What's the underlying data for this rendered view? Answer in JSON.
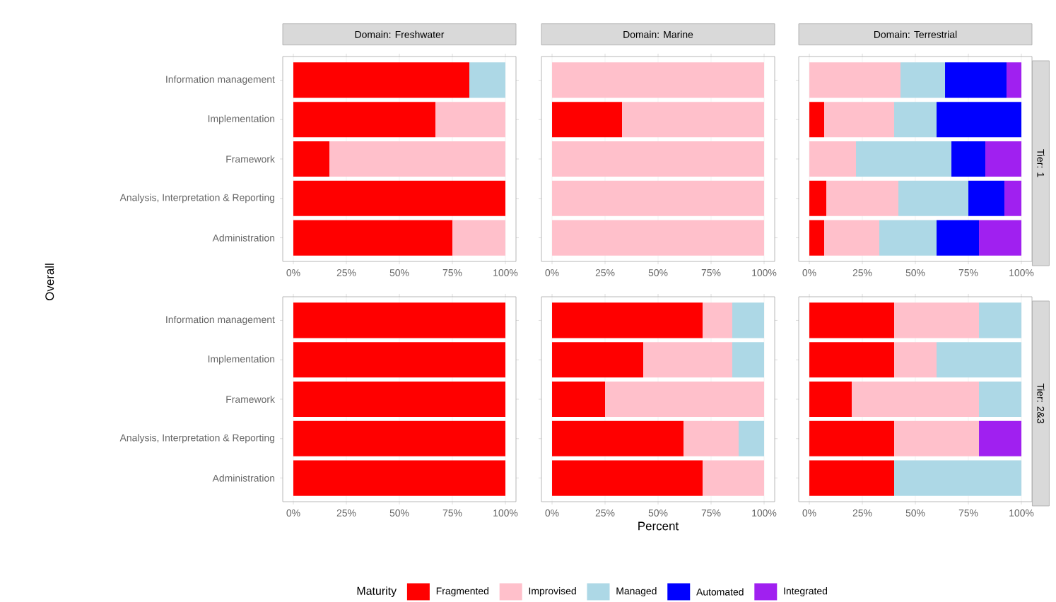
{
  "chart_data": [
    {
      "type": "bar",
      "orientation": "horizontal",
      "stacked": true,
      "title": "Domain: Freshwater",
      "ylabel": "Overall",
      "grid": "x",
      "categories": [
        "Information management",
        "Implementation",
        "Framework",
        "Analysis, Interpretation & Reporting",
        "Administration"
      ],
      "xlim": [
        -5,
        105
      ],
      "xticks": [
        {
          "value": 0,
          "label": "0%"
        },
        {
          "value": 25,
          "label": "25%"
        },
        {
          "value": 50,
          "label": "50%"
        },
        {
          "value": 75,
          "label": "75%"
        },
        {
          "value": 100,
          "label": "100%"
        }
      ],
      "series": [
        {
          "color": "#ff0000",
          "values": [
            83,
            67,
            17,
            100,
            75
          ]
        },
        {
          "color": "#ffc0cb",
          "values": [
            null,
            33,
            83,
            null,
            25
          ]
        },
        {
          "color": "#add8e6",
          "values": [
            17,
            null,
            null,
            null,
            null
          ]
        },
        {
          "color": "#0000ff",
          "values": [
            null,
            null,
            null,
            null,
            null
          ]
        },
        {
          "color": "#a020f0",
          "values": [
            null,
            null,
            null,
            null,
            null
          ]
        }
      ]
    },
    {
      "type": "bar",
      "orientation": "horizontal",
      "stacked": true,
      "title": "Domain: Marine",
      "grid": "x",
      "tick_labels": "x",
      "categories": [
        null,
        null,
        null,
        null,
        null
      ],
      "xlim": [
        -5,
        105
      ],
      "xticks": [
        {
          "value": 0,
          "label": "0%"
        },
        {
          "value": 25,
          "label": "25%"
        },
        {
          "value": 50,
          "label": "50%"
        },
        {
          "value": 75,
          "label": "75%"
        },
        {
          "value": 100,
          "label": "100%"
        }
      ],
      "series": [
        {
          "color": "#ff0000",
          "values": [
            null,
            33,
            null,
            null,
            null
          ]
        },
        {
          "color": "#ffc0cb",
          "values": [
            100,
            67,
            100,
            100,
            100
          ]
        },
        {
          "color": "#add8e6",
          "values": [
            null,
            null,
            null,
            null,
            null
          ]
        },
        {
          "color": "#0000ff",
          "values": [
            null,
            null,
            null,
            null,
            null
          ]
        },
        {
          "color": "#a020f0",
          "values": [
            null,
            null,
            null,
            null,
            null
          ]
        }
      ]
    },
    {
      "type": "bar",
      "orientation": "horizontal",
      "stacked": true,
      "title": "Domain: Terrestrial",
      "y2label": "Tier: 1",
      "grid": "x",
      "tick_labels": "x",
      "categories": [
        null,
        null,
        null,
        null,
        null
      ],
      "xlim": [
        -5,
        105
      ],
      "xticks": [
        {
          "value": 0,
          "label": "0%"
        },
        {
          "value": 25,
          "label": "25%"
        },
        {
          "value": 50,
          "label": "50%"
        },
        {
          "value": 75,
          "label": "75%"
        },
        {
          "value": 100,
          "label": "100%"
        }
      ],
      "series": [
        {
          "color": "#ff0000",
          "values": [
            null,
            7,
            null,
            8,
            7
          ]
        },
        {
          "color": "#ffc0cb",
          "values": [
            43,
            33,
            22,
            34,
            26
          ]
        },
        {
          "color": "#add8e6",
          "values": [
            21,
            20,
            45,
            33,
            27
          ]
        },
        {
          "color": "#0000ff",
          "values": [
            29,
            40,
            16,
            17,
            20
          ]
        },
        {
          "color": "#a020f0",
          "values": [
            7,
            null,
            17,
            8,
            20
          ]
        }
      ]
    },
    {
      "type": "bar",
      "orientation": "horizontal",
      "stacked": true,
      "grid": "x",
      "categories": [
        "Information management",
        "Implementation",
        "Framework",
        "Analysis, Interpretation & Reporting",
        "Administration"
      ],
      "xlim": [
        -5,
        105
      ],
      "xticks": [
        {
          "value": 0,
          "label": "0%"
        },
        {
          "value": 25,
          "label": "25%"
        },
        {
          "value": 50,
          "label": "50%"
        },
        {
          "value": 75,
          "label": "75%"
        },
        {
          "value": 100,
          "label": "100%"
        }
      ],
      "series": [
        {
          "color": "#ff0000",
          "values": [
            100,
            100,
            100,
            100,
            100
          ]
        },
        {
          "color": "#ffc0cb",
          "values": [
            null,
            null,
            null,
            null,
            null
          ]
        },
        {
          "color": "#add8e6",
          "values": [
            null,
            null,
            null,
            null,
            null
          ]
        },
        {
          "color": "#0000ff",
          "values": [
            null,
            null,
            null,
            null,
            null
          ]
        },
        {
          "color": "#a020f0",
          "values": [
            null,
            null,
            null,
            null,
            null
          ]
        }
      ]
    },
    {
      "type": "bar",
      "orientation": "horizontal",
      "stacked": true,
      "xlabel": "Percent",
      "grid": "x",
      "tick_labels": "x",
      "legend": "bottom",
      "legend_title": "Maturity",
      "categories": [
        null,
        null,
        null,
        null,
        null
      ],
      "xlim": [
        -5,
        105
      ],
      "xticks": [
        {
          "value": 0,
          "label": "0%"
        },
        {
          "value": 25,
          "label": "25%"
        },
        {
          "value": 50,
          "label": "50%"
        },
        {
          "value": 75,
          "label": "75%"
        },
        {
          "value": 100,
          "label": "100%"
        }
      ],
      "series": [
        {
          "name": "Fragmented",
          "color": "#ff0000",
          "values": [
            71,
            43,
            25,
            62,
            71
          ]
        },
        {
          "name": "Improvised",
          "color": "#ffc0cb",
          "values": [
            14,
            42,
            75,
            26,
            29
          ]
        },
        {
          "name": "Managed",
          "color": "#add8e6",
          "values": [
            15,
            15,
            null,
            12,
            null
          ]
        },
        {
          "name": "Automated",
          "color": "#0000ff",
          "values": [
            null,
            null,
            null,
            null,
            null
          ]
        },
        {
          "name": "Integrated",
          "color": "#a020f0",
          "values": [
            null,
            null,
            null,
            null,
            null
          ]
        }
      ]
    },
    {
      "type": "bar",
      "orientation": "horizontal",
      "stacked": true,
      "y2label": "Tier: 2&3",
      "grid": "x",
      "tick_labels": "x",
      "categories": [
        null,
        null,
        null,
        null,
        null
      ],
      "xlim": [
        -5,
        105
      ],
      "xticks": [
        {
          "value": 0,
          "label": "0%"
        },
        {
          "value": 25,
          "label": "25%"
        },
        {
          "value": 50,
          "label": "50%"
        },
        {
          "value": 75,
          "label": "75%"
        },
        {
          "value": 100,
          "label": "100%"
        }
      ],
      "series": [
        {
          "color": "#ff0000",
          "values": [
            40,
            40,
            20,
            40,
            40
          ]
        },
        {
          "color": "#ffc0cb",
          "values": [
            40,
            20,
            60,
            40,
            null
          ]
        },
        {
          "color": "#add8e6",
          "values": [
            20,
            40,
            20,
            null,
            60
          ]
        },
        {
          "color": "#0000ff",
          "values": [
            null,
            null,
            null,
            null,
            null
          ]
        },
        {
          "color": "#a020f0",
          "values": [
            null,
            null,
            0,
            20,
            null
          ]
        }
      ]
    }
  ]
}
